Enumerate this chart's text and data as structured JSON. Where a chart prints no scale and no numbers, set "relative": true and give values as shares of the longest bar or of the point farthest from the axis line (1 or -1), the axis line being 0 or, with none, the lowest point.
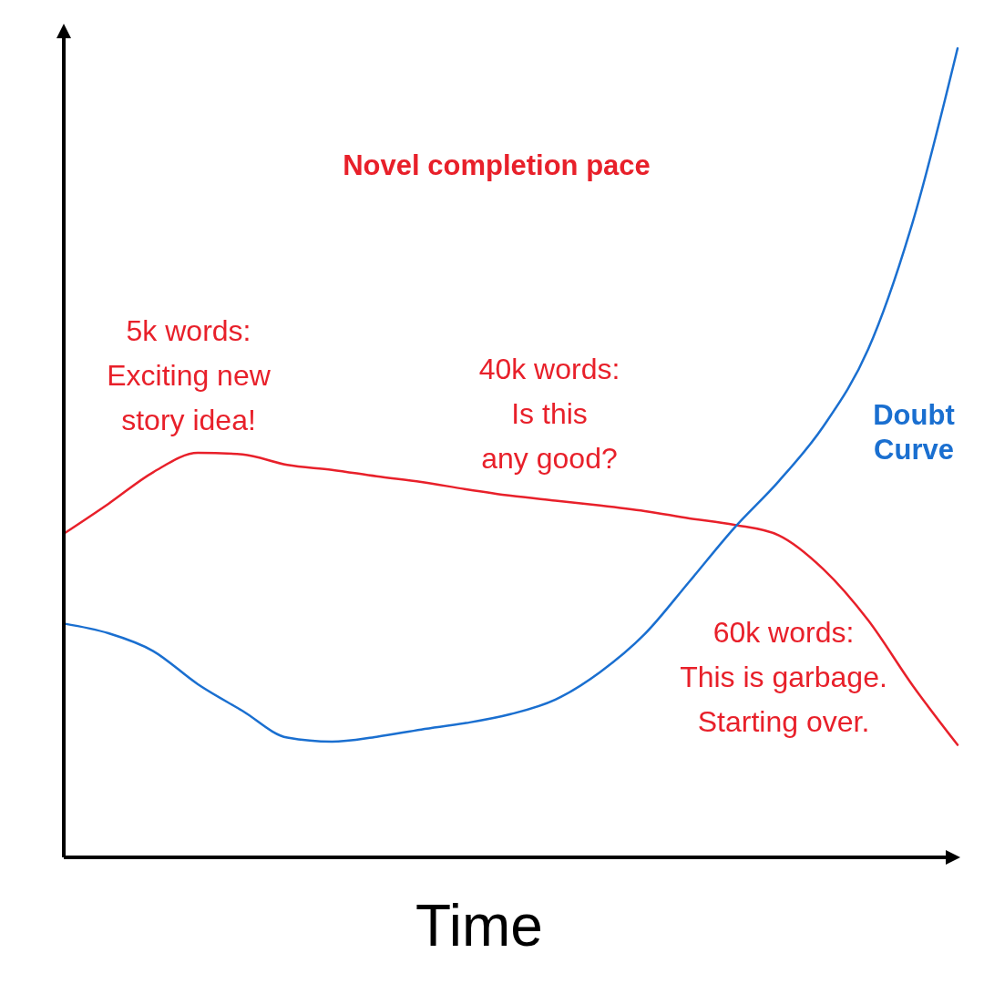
{
  "chart_data": {
    "type": "line",
    "relative": true,
    "xlabel": "Time",
    "categories": [
      null,
      null,
      null,
      null,
      null,
      null,
      null,
      null,
      null,
      null,
      null,
      null,
      null,
      null,
      null,
      null,
      null,
      null,
      null,
      null,
      null
    ],
    "series": [
      {
        "name": "Novel completion pace",
        "color": "#e8202a",
        "values": [
          0.4,
          0.437,
          0.476,
          0.5,
          0.498,
          0.485,
          0.479,
          0.471,
          0.464,
          0.455,
          0.447,
          0.441,
          0.435,
          0.428,
          0.419,
          0.411,
          0.398,
          0.356,
          0.293,
          0.212,
          0.139
        ]
      },
      {
        "name": "Doubt Curve",
        "color": "#1a6fd0",
        "values": [
          0.289,
          0.277,
          0.255,
          0.214,
          0.181,
          0.148,
          0.143,
          0.149,
          0.158,
          0.166,
          0.177,
          0.195,
          0.229,
          0.276,
          0.341,
          0.407,
          0.465,
          0.533,
          0.628,
          0.786,
          1.0
        ]
      }
    ],
    "annotations": [
      "5k words:\nExciting new\nstory idea!",
      "40k words:\nIs this\nany good?",
      "60k words:\nThis is garbage.\nStarting over."
    ],
    "marker": "none",
    "line_style": "solid"
  }
}
